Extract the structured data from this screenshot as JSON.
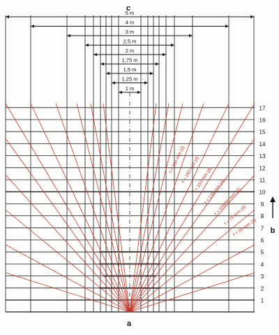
{
  "labels": {
    "top_marker": "c",
    "bottom_marker": "a",
    "side_marker": "b"
  },
  "widths": [
    "5 m",
    "4 m",
    "3 m",
    "2,5 m",
    "2 m",
    "1,75 m",
    "1,5 m",
    "1,25 m",
    "1 m"
  ],
  "distances": [
    "1",
    "2",
    "3",
    "4",
    "5",
    "6",
    "7",
    "8",
    "9",
    "10",
    "11",
    "12",
    "13",
    "14",
    "15",
    "16",
    "17"
  ],
  "focal_lengths": [
    "f = 200 mm (d)",
    "f = 180 mm (d)",
    "f = 150 mm (d)",
    "f = 135 mm (d)",
    "f = 105/90 mm (d)",
    "f = 75 mm (d)",
    "f = 55 mm (d)"
  ],
  "colors": {
    "rays": "#c0392b",
    "lines": "#1a1a1a",
    "text": "#111111"
  },
  "icons": {
    "direction": "arrow-up-icon"
  }
}
